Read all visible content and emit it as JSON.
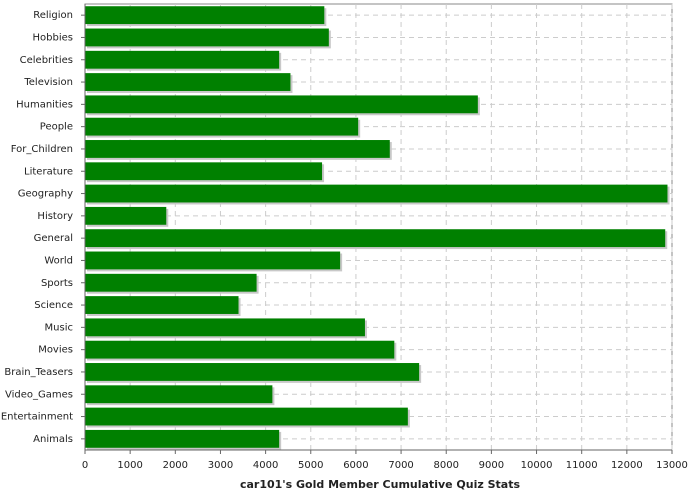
{
  "chart_data": {
    "type": "bar",
    "orientation": "horizontal",
    "title": "car101's Gold Member Cumulative Quiz Stats",
    "categories": [
      "Religion",
      "Hobbies",
      "Celebrities",
      "Television",
      "Humanities",
      "People",
      "For_Children",
      "Literature",
      "Geography",
      "History",
      "General",
      "World",
      "Sports",
      "Science",
      "Music",
      "Movies",
      "Brain_Teasers",
      "Video_Games",
      "Entertainment",
      "Animals"
    ],
    "values": [
      5300,
      5400,
      4300,
      4550,
      8700,
      6050,
      6750,
      5250,
      12900,
      1800,
      12850,
      5650,
      3800,
      3400,
      6200,
      6850,
      7400,
      4150,
      7150,
      4300
    ],
    "color": "#008000",
    "xlim": [
      0,
      13000
    ],
    "xticks": [
      0,
      1000,
      2000,
      3000,
      4000,
      5000,
      6000,
      7000,
      8000,
      9000,
      10000,
      11000,
      12000,
      13000
    ],
    "grid": true
  }
}
